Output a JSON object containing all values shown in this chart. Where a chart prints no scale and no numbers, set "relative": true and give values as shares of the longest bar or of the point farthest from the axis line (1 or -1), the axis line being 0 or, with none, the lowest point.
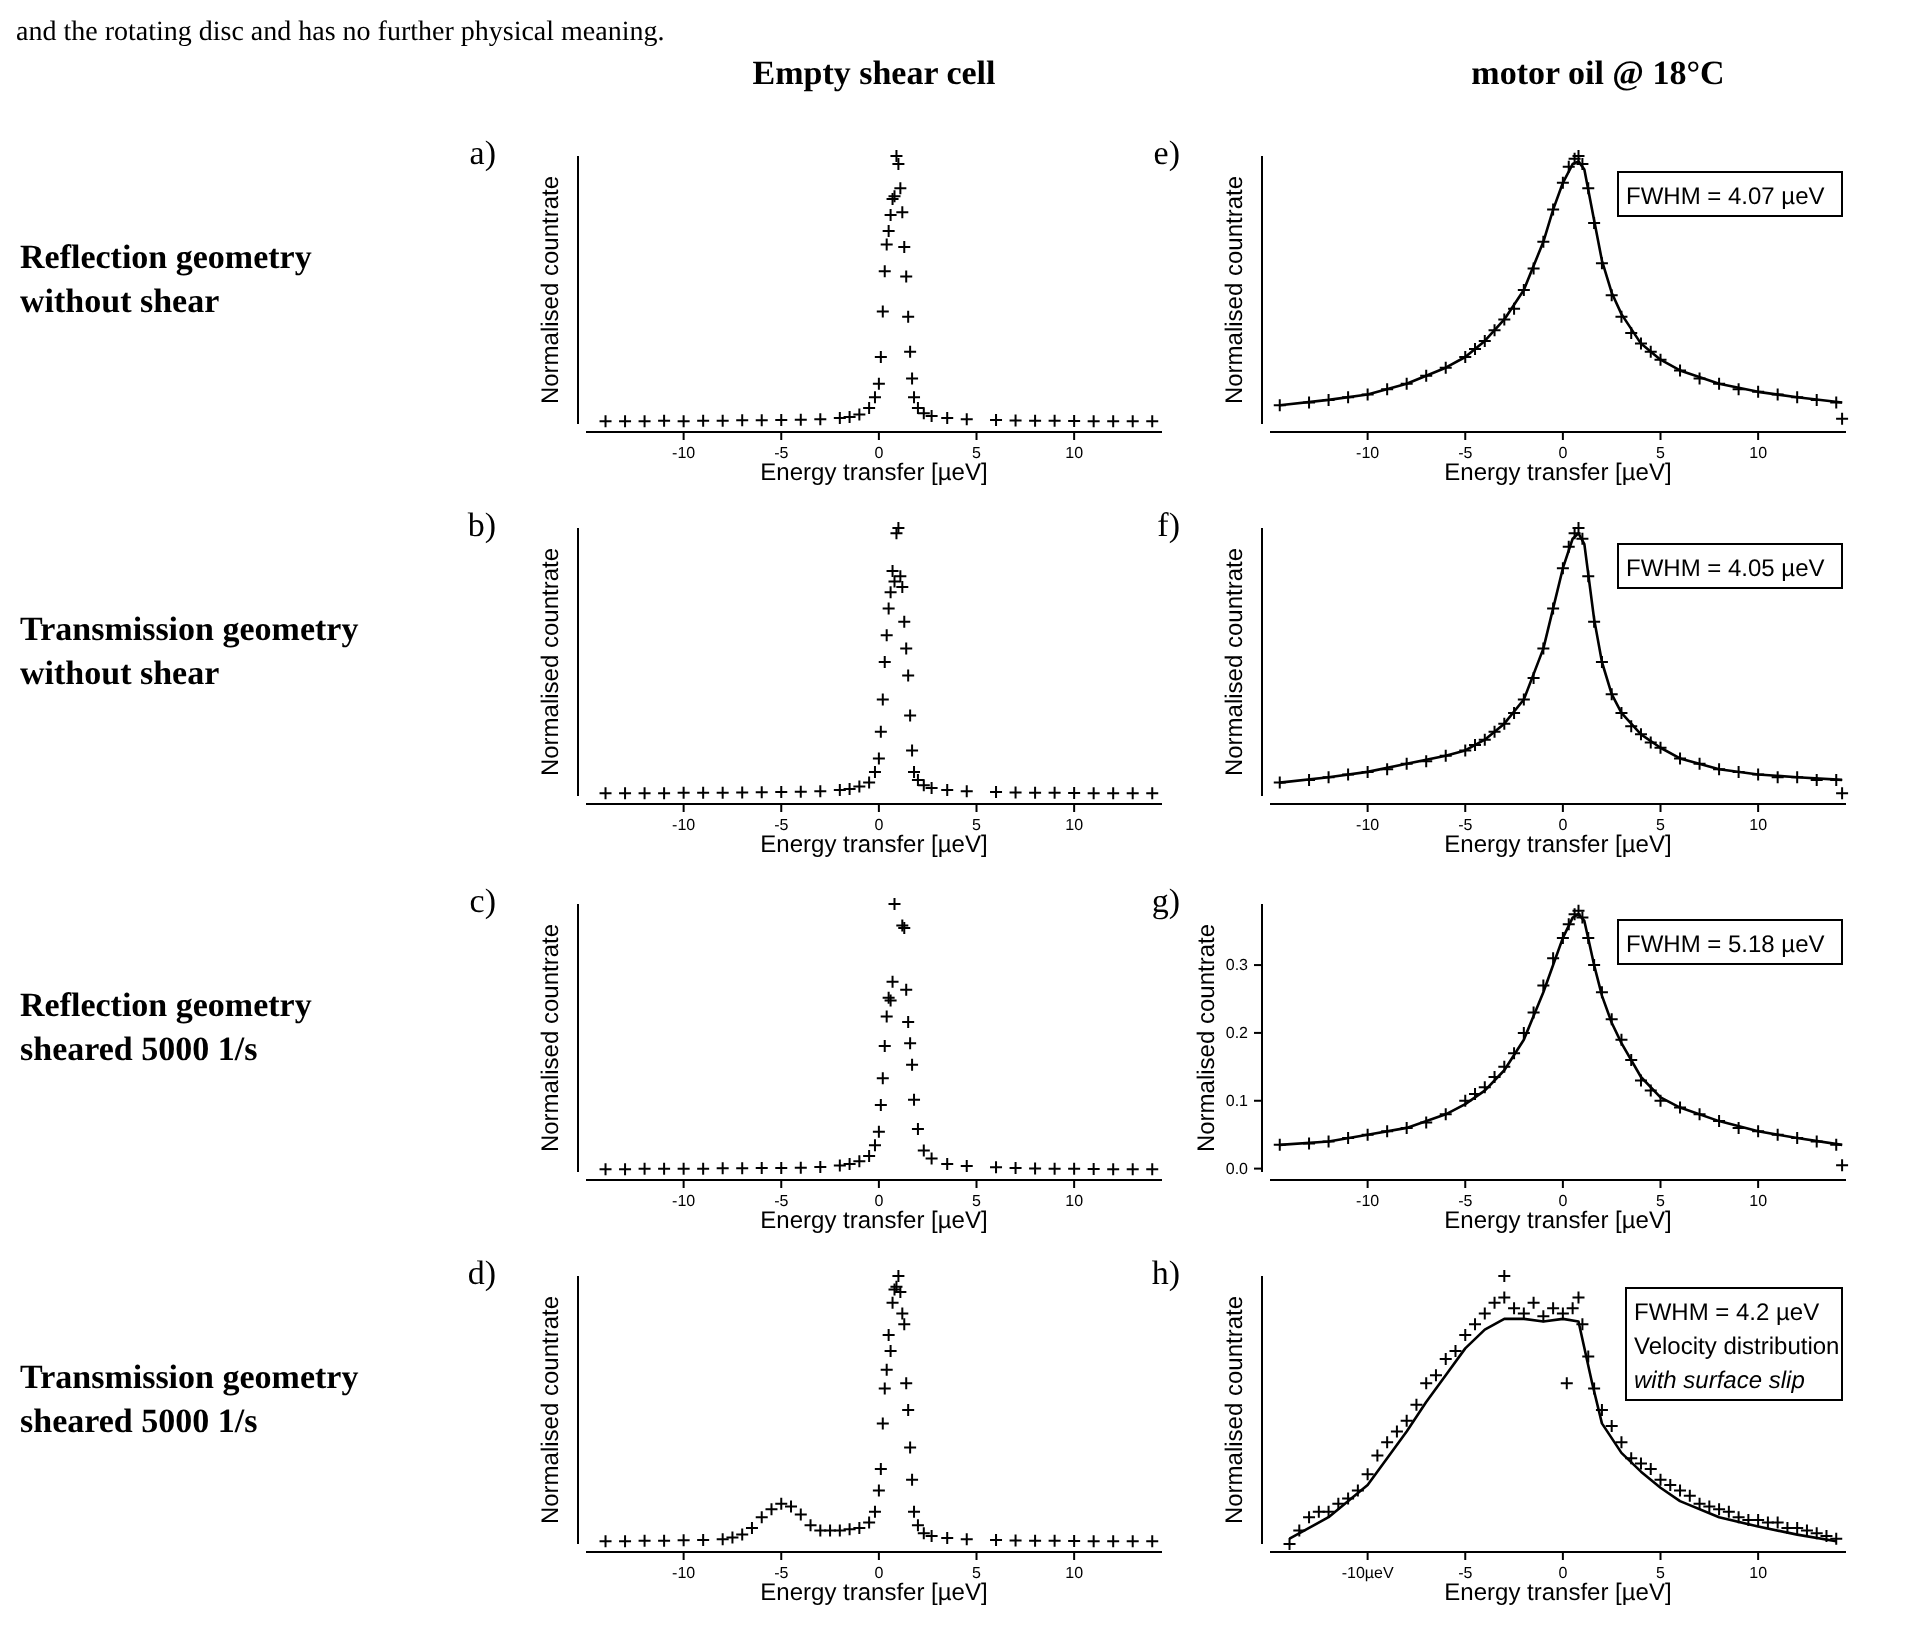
{
  "chart_data": [
    {
      "type": "scatter",
      "title": "a)",
      "subtitle": "Empty shear cell",
      "xlabel": "Energy transfer [µeV]",
      "ylabel": "Normalised countrate",
      "relative": true,
      "marker": "cross",
      "annotations": [
        "and the rotating disc and has no further physical meaning.",
        "Reflection geometry without shear"
      ],
      "xlim": [
        -15,
        14.5
      ],
      "xticks": [
        -10,
        -5,
        0,
        5,
        10
      ],
      "series": [
        {
          "color": "#000000",
          "x": [
            -14,
            -13,
            -12,
            -11,
            -10,
            -9,
            -8,
            -7,
            -6,
            -5,
            -4,
            -3,
            -2,
            -1.5,
            -1,
            -0.5,
            -0.2,
            0,
            0.1,
            0.2,
            0.3,
            0.4,
            0.5,
            0.6,
            0.7,
            0.8,
            0.9,
            1.0,
            1.1,
            1.2,
            1.3,
            1.4,
            1.5,
            1.6,
            1.7,
            1.8,
            2.0,
            2.3,
            2.7,
            3.5,
            4.5,
            6,
            7,
            8,
            9,
            10,
            11,
            12,
            13,
            14
          ],
          "values": [
            0.01,
            0.01,
            0.01,
            0.012,
            0.01,
            0.012,
            0.012,
            0.014,
            0.014,
            0.015,
            0.016,
            0.018,
            0.022,
            0.026,
            0.035,
            0.06,
            0.1,
            0.15,
            0.25,
            0.42,
            0.57,
            0.67,
            0.72,
            0.78,
            0.84,
            0.85,
            1.0,
            0.97,
            0.88,
            0.79,
            0.66,
            0.55,
            0.4,
            0.27,
            0.17,
            0.1,
            0.06,
            0.04,
            0.03,
            0.022,
            0.018,
            0.015,
            0.013,
            0.012,
            0.012,
            0.011,
            0.01,
            0.01,
            0.01,
            0.01
          ]
        }
      ]
    },
    {
      "type": "scatter",
      "title": "e)",
      "subtitle": "motor oil @ 18°C",
      "xlabel": "Energy transfer [µeV]",
      "ylabel": "Normalised countrate",
      "relative": true,
      "marker": "cross",
      "annotations": [
        "FWHM = 4.07 µeV"
      ],
      "xlim": [
        -15,
        14.5
      ],
      "xticks": [
        -10,
        -5,
        0,
        5,
        10
      ],
      "series": [
        {
          "color": "#000000",
          "x": [
            -14.5,
            -13,
            -12,
            -11,
            -10,
            -9,
            -8,
            -7,
            -6,
            -5,
            -4.5,
            -4,
            -3.5,
            -3,
            -2.5,
            -2,
            -1.5,
            -1,
            -0.5,
            0,
            0.3,
            0.6,
            0.8,
            1,
            1.3,
            1.6,
            2,
            2.5,
            3,
            3.5,
            4,
            4.5,
            5,
            6,
            7,
            8,
            9,
            10,
            11,
            12,
            13,
            14,
            14.3
          ],
          "values": [
            0.07,
            0.08,
            0.09,
            0.1,
            0.11,
            0.13,
            0.15,
            0.18,
            0.21,
            0.25,
            0.28,
            0.31,
            0.35,
            0.39,
            0.43,
            0.5,
            0.58,
            0.68,
            0.8,
            0.9,
            0.96,
            0.99,
            1.0,
            0.97,
            0.88,
            0.75,
            0.6,
            0.48,
            0.4,
            0.34,
            0.3,
            0.27,
            0.24,
            0.2,
            0.17,
            0.15,
            0.13,
            0.12,
            0.11,
            0.1,
            0.09,
            0.08,
            0.02
          ]
        },
        {
          "type": "line",
          "marker": "none",
          "color": "#000000",
          "x": [
            -14.5,
            -12,
            -10,
            -8,
            -6,
            -5,
            -4,
            -3,
            -2,
            -1,
            -0.5,
            0,
            0.5,
            0.8,
            1.1,
            1.6,
            2,
            2.5,
            3,
            4,
            5,
            6,
            8,
            10,
            12,
            14.3
          ],
          "values": [
            0.07,
            0.09,
            0.11,
            0.15,
            0.21,
            0.25,
            0.31,
            0.39,
            0.5,
            0.68,
            0.8,
            0.9,
            0.97,
            0.98,
            0.95,
            0.76,
            0.61,
            0.49,
            0.41,
            0.3,
            0.24,
            0.2,
            0.15,
            0.12,
            0.1,
            0.08
          ]
        }
      ]
    },
    {
      "type": "scatter",
      "title": "b)",
      "xlabel": "Energy transfer [µeV]",
      "ylabel": "Normalised countrate",
      "relative": true,
      "marker": "cross",
      "annotations": [
        "Transmission geometry without shear"
      ],
      "xlim": [
        -15,
        14.5
      ],
      "xticks": [
        -10,
        -5,
        0,
        5,
        10
      ],
      "series": [
        {
          "color": "#000000",
          "x": [
            -14,
            -13,
            -12,
            -11,
            -10,
            -9,
            -8,
            -7,
            -6,
            -5,
            -4,
            -3,
            -2,
            -1.5,
            -1,
            -0.5,
            -0.2,
            0,
            0.1,
            0.2,
            0.3,
            0.4,
            0.5,
            0.6,
            0.7,
            0.8,
            0.9,
            1.0,
            1.1,
            1.2,
            1.3,
            1.4,
            1.5,
            1.6,
            1.7,
            1.8,
            2.0,
            2.3,
            2.7,
            3.5,
            4.5,
            6,
            7,
            8,
            9,
            10,
            11,
            12,
            13,
            14
          ],
          "values": [
            0.01,
            0.01,
            0.01,
            0.01,
            0.012,
            0.012,
            0.012,
            0.013,
            0.014,
            0.015,
            0.016,
            0.018,
            0.022,
            0.026,
            0.035,
            0.05,
            0.09,
            0.14,
            0.24,
            0.36,
            0.5,
            0.6,
            0.7,
            0.76,
            0.84,
            0.8,
            0.98,
            1.0,
            0.82,
            0.78,
            0.65,
            0.55,
            0.45,
            0.3,
            0.17,
            0.09,
            0.06,
            0.04,
            0.03,
            0.022,
            0.018,
            0.015,
            0.013,
            0.012,
            0.012,
            0.011,
            0.01,
            0.01,
            0.01,
            0.01
          ]
        }
      ]
    },
    {
      "type": "scatter",
      "title": "f)",
      "xlabel": "Energy transfer [µeV]",
      "ylabel": "Normalised countrate",
      "relative": true,
      "marker": "cross",
      "annotations": [
        "FWHM = 4.05 µeV"
      ],
      "xlim": [
        -15,
        14.5
      ],
      "xticks": [
        -10,
        -5,
        0,
        5,
        10
      ],
      "series": [
        {
          "color": "#000000",
          "x": [
            -14.5,
            -13,
            -12,
            -11,
            -10,
            -9,
            -8,
            -7,
            -6,
            -5,
            -4.5,
            -4,
            -3.5,
            -3,
            -2.5,
            -2,
            -1.5,
            -1,
            -0.5,
            0,
            0.3,
            0.6,
            0.8,
            1,
            1.3,
            1.6,
            2,
            2.5,
            3,
            3.5,
            4,
            4.5,
            5,
            6,
            7,
            8,
            9,
            10,
            11,
            12,
            13,
            14,
            14.3
          ],
          "values": [
            0.05,
            0.06,
            0.07,
            0.08,
            0.09,
            0.1,
            0.12,
            0.13,
            0.15,
            0.17,
            0.19,
            0.21,
            0.24,
            0.27,
            0.31,
            0.36,
            0.44,
            0.55,
            0.7,
            0.85,
            0.93,
            0.98,
            1.0,
            0.96,
            0.82,
            0.65,
            0.5,
            0.38,
            0.31,
            0.26,
            0.23,
            0.2,
            0.18,
            0.14,
            0.12,
            0.1,
            0.09,
            0.08,
            0.07,
            0.07,
            0.06,
            0.06,
            0.01
          ]
        },
        {
          "type": "line",
          "marker": "none",
          "color": "#000000",
          "x": [
            -14.5,
            -12,
            -10,
            -8,
            -6,
            -5,
            -4,
            -3,
            -2,
            -1,
            -0.5,
            0,
            0.5,
            0.8,
            1.1,
            1.6,
            2,
            2.5,
            3,
            4,
            5,
            6,
            8,
            10,
            12,
            14.3
          ],
          "values": [
            0.05,
            0.07,
            0.09,
            0.12,
            0.15,
            0.17,
            0.21,
            0.27,
            0.36,
            0.55,
            0.7,
            0.85,
            0.96,
            0.98,
            0.94,
            0.66,
            0.5,
            0.38,
            0.31,
            0.23,
            0.18,
            0.14,
            0.1,
            0.08,
            0.07,
            0.06
          ]
        }
      ]
    },
    {
      "type": "scatter",
      "title": "c)",
      "xlabel": "Energy transfer [µeV]",
      "ylabel": "Normalised countrate",
      "relative": true,
      "marker": "cross",
      "annotations": [
        "Reflection geometry sheared 5000 1/s"
      ],
      "xlim": [
        -15,
        14.5
      ],
      "xticks": [
        -10,
        -5,
        0,
        5,
        10
      ],
      "series": [
        {
          "color": "#000000",
          "x": [
            -14,
            -13,
            -12,
            -11,
            -10,
            -9,
            -8,
            -7,
            -6,
            -5,
            -4,
            -3,
            -2,
            -1.5,
            -1,
            -0.5,
            -0.2,
            0,
            0.1,
            0.2,
            0.3,
            0.4,
            0.5,
            0.6,
            0.7,
            0.8,
            1.2,
            1.3,
            1.4,
            1.5,
            1.6,
            1.7,
            1.8,
            2.0,
            2.3,
            2.7,
            3.5,
            4.5,
            6,
            7,
            8,
            9,
            10,
            11,
            12,
            13,
            14
          ],
          "values": [
            0.01,
            0.01,
            0.012,
            0.012,
            0.012,
            0.012,
            0.014,
            0.014,
            0.015,
            0.015,
            0.016,
            0.019,
            0.024,
            0.03,
            0.04,
            0.06,
            0.1,
            0.15,
            0.25,
            0.35,
            0.47,
            0.58,
            0.65,
            0.64,
            0.71,
            1.0,
            0.92,
            0.91,
            0.68,
            0.56,
            0.48,
            0.4,
            0.27,
            0.16,
            0.08,
            0.05,
            0.03,
            0.022,
            0.018,
            0.015,
            0.013,
            0.012,
            0.012,
            0.011,
            0.01,
            0.01,
            0.01
          ]
        }
      ]
    },
    {
      "type": "scatter",
      "title": "g)",
      "xlabel": "Energy transfer [µeV]",
      "ylabel": "Normalised countrate",
      "marker": "cross",
      "annotations": [
        "FWHM = 5.18 µeV"
      ],
      "xlim": [
        -15,
        14.5
      ],
      "xticks": [
        -10,
        -5,
        0,
        5,
        10
      ],
      "ylim": [
        -0.005,
        0.39
      ],
      "yticks": [
        {
          "value": 0,
          "label": "0.0"
        },
        0.1,
        0.2,
        0.3
      ],
      "series": [
        {
          "color": "#000000",
          "x": [
            -14.5,
            -13,
            -12,
            -11,
            -10,
            -9,
            -8,
            -7,
            -6,
            -5,
            -4.5,
            -4,
            -3.5,
            -3,
            -2.5,
            -2,
            -1.5,
            -1,
            -0.5,
            0,
            0.3,
            0.6,
            0.8,
            1,
            1.3,
            1.6,
            2,
            2.5,
            3,
            3.5,
            4,
            4.5,
            5,
            6,
            7,
            8,
            9,
            10,
            11,
            12,
            13,
            14,
            14.3
          ],
          "values": [
            0.035,
            0.037,
            0.04,
            0.045,
            0.05,
            0.055,
            0.06,
            0.068,
            0.08,
            0.1,
            0.11,
            0.12,
            0.135,
            0.15,
            0.17,
            0.2,
            0.23,
            0.27,
            0.31,
            0.34,
            0.36,
            0.375,
            0.38,
            0.37,
            0.34,
            0.3,
            0.26,
            0.22,
            0.19,
            0.16,
            0.13,
            0.115,
            0.1,
            0.09,
            0.08,
            0.07,
            0.06,
            0.055,
            0.05,
            0.045,
            0.04,
            0.035,
            0.005
          ]
        },
        {
          "type": "line",
          "marker": "none",
          "color": "#000000",
          "x": [
            -14.5,
            -12,
            -10,
            -8,
            -6,
            -5,
            -4,
            -3,
            -2,
            -1,
            -0.5,
            0,
            0.5,
            0.8,
            1.1,
            1.6,
            2,
            2.5,
            3,
            4,
            5,
            6,
            8,
            10,
            12,
            14.3
          ],
          "values": [
            0.035,
            0.04,
            0.05,
            0.06,
            0.08,
            0.095,
            0.115,
            0.145,
            0.19,
            0.26,
            0.3,
            0.34,
            0.37,
            0.375,
            0.365,
            0.3,
            0.255,
            0.215,
            0.185,
            0.135,
            0.105,
            0.09,
            0.07,
            0.055,
            0.045,
            0.035
          ]
        }
      ]
    },
    {
      "type": "scatter",
      "title": "d)",
      "xlabel": "Energy transfer [µeV]",
      "ylabel": "Normalised countrate",
      "relative": true,
      "marker": "cross",
      "annotations": [
        "Transmission geometry sheared 5000 1/s"
      ],
      "xlim": [
        -15,
        14.5
      ],
      "xticks": [
        -10,
        -5,
        0,
        5,
        10
      ],
      "series": [
        {
          "color": "#000000",
          "x": [
            -14,
            -13,
            -12,
            -11,
            -10,
            -9,
            -8,
            -7.5,
            -7,
            -6.5,
            -6,
            -5.5,
            -5,
            -4.5,
            -4,
            -3.5,
            -3,
            -2.5,
            -2,
            -1.5,
            -1,
            -0.5,
            -0.2,
            0,
            0.1,
            0.2,
            0.3,
            0.4,
            0.5,
            0.6,
            0.7,
            0.8,
            0.9,
            1.0,
            1.1,
            1.2,
            1.3,
            1.4,
            1.5,
            1.6,
            1.7,
            1.8,
            2.0,
            2.3,
            2.7,
            3.5,
            4.5,
            6,
            7,
            8,
            9,
            10,
            11,
            12,
            13,
            14
          ],
          "values": [
            0.01,
            0.01,
            0.012,
            0.012,
            0.014,
            0.015,
            0.018,
            0.024,
            0.035,
            0.06,
            0.1,
            0.13,
            0.15,
            0.14,
            0.11,
            0.07,
            0.05,
            0.05,
            0.05,
            0.055,
            0.06,
            0.08,
            0.12,
            0.2,
            0.28,
            0.45,
            0.58,
            0.65,
            0.78,
            0.72,
            0.9,
            0.95,
            0.96,
            1.0,
            0.94,
            0.86,
            0.82,
            0.6,
            0.5,
            0.36,
            0.24,
            0.12,
            0.07,
            0.04,
            0.03,
            0.022,
            0.018,
            0.015,
            0.013,
            0.012,
            0.012,
            0.011,
            0.01,
            0.01,
            0.01,
            0.01
          ]
        }
      ]
    },
    {
      "type": "scatter",
      "title": "h)",
      "xlabel": "Energy transfer [µeV]",
      "ylabel": "Normalised countrate",
      "relative": true,
      "marker": "cross",
      "annotations": [
        "FWHM = 4.2 µeV",
        "Velocity distribution",
        "with surface slip"
      ],
      "xlim": [
        -15,
        14.5
      ],
      "xticks": [
        {
          "value": -10,
          "label": "-10µeV"
        },
        -5,
        0,
        5,
        10
      ],
      "series": [
        {
          "color": "#000000",
          "x": [
            -14,
            -13.5,
            -13,
            -12.5,
            -12,
            -11.5,
            -11,
            -10.5,
            -10,
            -9.5,
            -9,
            -8.5,
            -8,
            -7.5,
            -7,
            -6.5,
            -6,
            -5.5,
            -5,
            -4.5,
            -4,
            -3.5,
            -3,
            -3,
            -2.5,
            -2,
            -1.5,
            -1,
            -0.5,
            0,
            0.2,
            0.5,
            0.8,
            1,
            1.3,
            1.6,
            2,
            2.5,
            3,
            3.5,
            4,
            4.5,
            5,
            5.5,
            6,
            6.5,
            7,
            7.5,
            8,
            8.5,
            9,
            9.5,
            10,
            10.5,
            11,
            11.5,
            12,
            12.5,
            13,
            13.5,
            14
          ],
          "values": [
            0.0,
            0.05,
            0.1,
            0.12,
            0.12,
            0.15,
            0.17,
            0.2,
            0.26,
            0.33,
            0.38,
            0.42,
            0.46,
            0.52,
            0.6,
            0.63,
            0.69,
            0.72,
            0.78,
            0.82,
            0.86,
            0.9,
            0.92,
            1.0,
            0.88,
            0.86,
            0.9,
            0.85,
            0.88,
            0.86,
            0.6,
            0.88,
            0.92,
            0.82,
            0.7,
            0.58,
            0.5,
            0.44,
            0.38,
            0.32,
            0.3,
            0.28,
            0.24,
            0.22,
            0.2,
            0.18,
            0.15,
            0.14,
            0.13,
            0.12,
            0.1,
            0.09,
            0.09,
            0.08,
            0.08,
            0.06,
            0.06,
            0.05,
            0.04,
            0.03,
            0.02
          ]
        },
        {
          "type": "line",
          "marker": "none",
          "color": "#000000",
          "x": [
            -14,
            -12,
            -10,
            -9,
            -8,
            -7,
            -6,
            -5,
            -4,
            -3,
            -2,
            -1,
            0,
            0.8,
            1.5,
            2,
            3,
            4,
            5,
            6,
            8,
            10,
            12,
            14
          ],
          "values": [
            0.02,
            0.1,
            0.22,
            0.32,
            0.42,
            0.53,
            0.63,
            0.73,
            0.8,
            0.84,
            0.84,
            0.83,
            0.84,
            0.83,
            0.6,
            0.45,
            0.34,
            0.27,
            0.21,
            0.16,
            0.1,
            0.065,
            0.035,
            0.01
          ]
        }
      ]
    }
  ]
}
